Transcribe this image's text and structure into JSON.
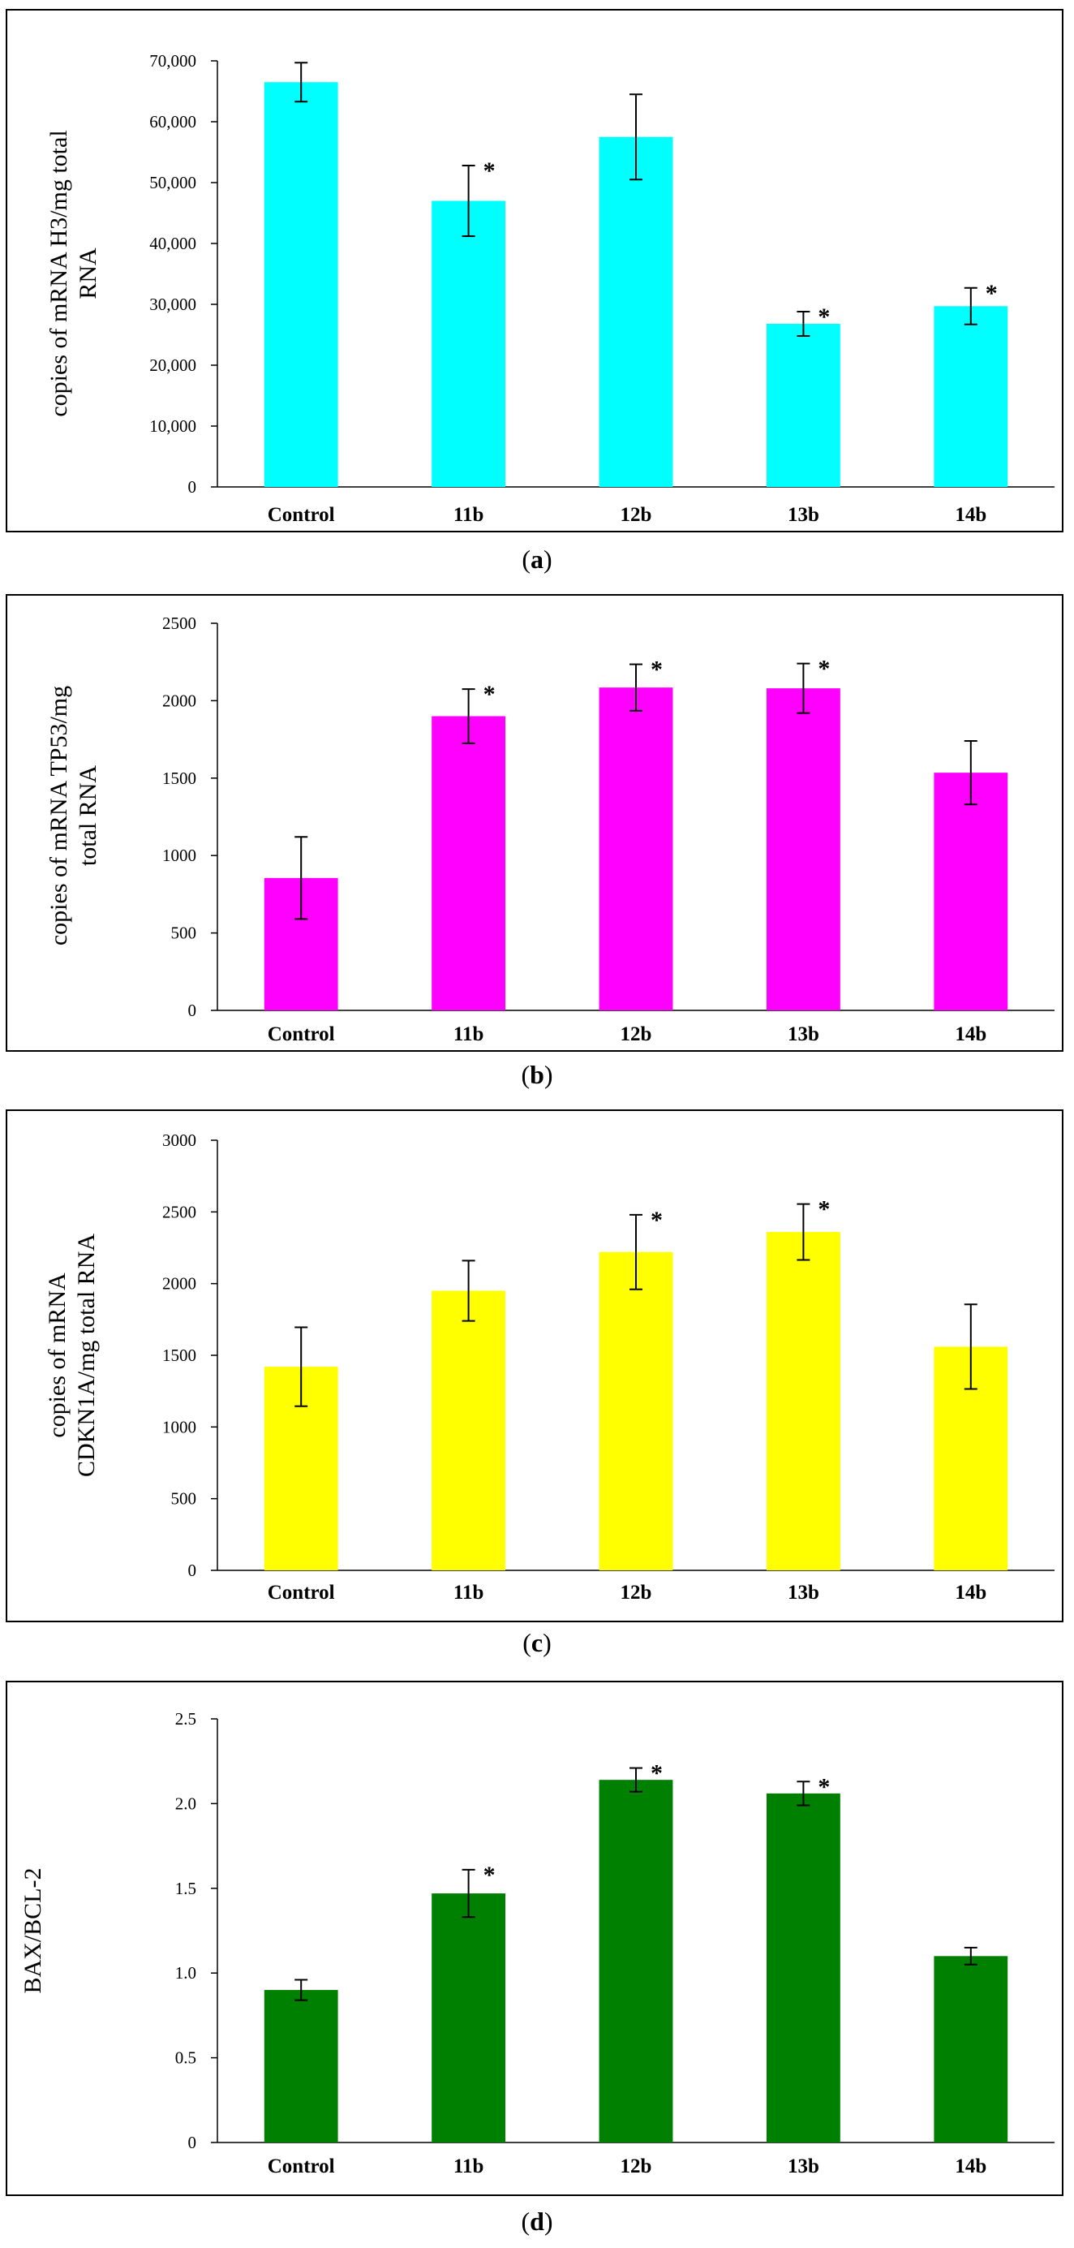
{
  "chart_data": [
    {
      "type": "bar",
      "panel": "a",
      "categories": [
        "Control",
        "11b",
        "12b",
        "13b",
        "14b"
      ],
      "values": [
        66500,
        47000,
        57500,
        26800,
        29700
      ],
      "errors": [
        3200,
        5800,
        7000,
        2000,
        3000
      ],
      "significant": [
        false,
        true,
        false,
        true,
        true
      ],
      "ylim": [
        0,
        70000
      ],
      "yticks": [
        "0",
        "10,000",
        "20,000",
        "30,000",
        "40,000",
        "50,000",
        "60,000",
        "70,000"
      ],
      "ylabel_lines": [
        "copies of  mRNA H3/mg total",
        "RNA"
      ],
      "color": "#00FFFF"
    },
    {
      "type": "bar",
      "panel": "b",
      "categories": [
        "Control",
        "11b",
        "12b",
        "13b",
        "14b"
      ],
      "values": [
        855,
        1900,
        2085,
        2080,
        1535
      ],
      "errors": [
        265,
        175,
        150,
        160,
        205
      ],
      "significant": [
        false,
        true,
        true,
        true,
        false
      ],
      "ylim": [
        0,
        2500
      ],
      "yticks": [
        "0",
        "500",
        "1000",
        "1500",
        "2000",
        "2500"
      ],
      "ylabel_lines": [
        "copies of mRNA TP53/mg",
        "total RNA"
      ],
      "color": "#FF00FF"
    },
    {
      "type": "bar",
      "panel": "c",
      "categories": [
        "Control",
        "11b",
        "12b",
        "13b",
        "14b"
      ],
      "values": [
        1420,
        1950,
        2220,
        2360,
        1560
      ],
      "errors": [
        275,
        210,
        260,
        195,
        295
      ],
      "significant": [
        false,
        false,
        true,
        true,
        false
      ],
      "ylim": [
        0,
        3000
      ],
      "yticks": [
        "0",
        "500",
        "1000",
        "1500",
        "2000",
        "2500",
        "3000"
      ],
      "ylabel_lines": [
        "copies of  mRNA",
        "CDKN1A/mg  total RNA"
      ],
      "color": "#FFFF00"
    },
    {
      "type": "bar",
      "panel": "d",
      "categories": [
        "Control",
        "11b",
        "12b",
        "13b",
        "14b"
      ],
      "values": [
        0.9,
        1.47,
        2.14,
        2.06,
        1.1
      ],
      "errors": [
        0.06,
        0.14,
        0.07,
        0.07,
        0.05
      ],
      "significant": [
        false,
        true,
        true,
        true,
        false
      ],
      "ylim": [
        0,
        2.5
      ],
      "yticks": [
        "0",
        "0.5",
        "1.0",
        "1.5",
        "2.0",
        "2.5"
      ],
      "ylabel_lines": [
        "BAX/BCL-2"
      ],
      "color": "#008000"
    }
  ],
  "panel_labels": [
    "a",
    "b",
    "c",
    "d"
  ],
  "significance_marker": "*"
}
